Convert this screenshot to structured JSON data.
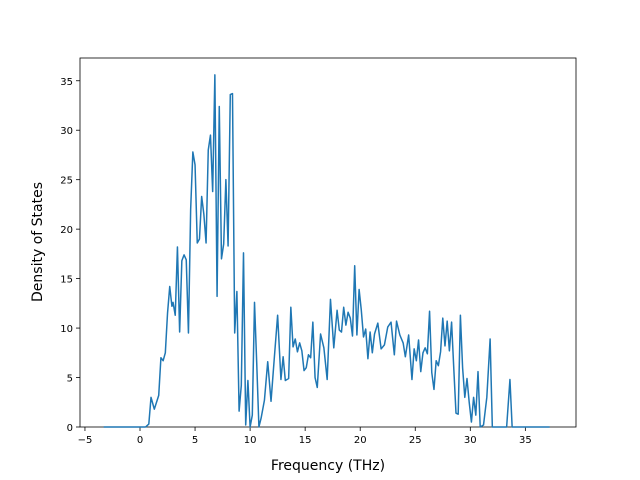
{
  "chart_data": {
    "type": "line",
    "x_label": "Frequency (THz)",
    "y_label": "Density of States",
    "xlim": [
      -5.45,
      39.6
    ],
    "ylim": [
      0,
      37.3
    ],
    "xticks": [
      {
        "value": -5,
        "label": "−5"
      },
      0,
      5,
      10,
      15,
      20,
      25,
      30,
      35
    ],
    "yticks": [
      0,
      5,
      10,
      15,
      20,
      25,
      30,
      35
    ],
    "series": [
      {
        "color": "#1f77b4",
        "x": [
          -3.3,
          0.5,
          0.8,
          1.0,
          1.3,
          1.7,
          1.9,
          2.1,
          2.3,
          2.5,
          2.7,
          2.9,
          3.0,
          3.2,
          3.4,
          3.6,
          3.8,
          4.0,
          4.2,
          4.4,
          4.6,
          4.8,
          5.0,
          5.2,
          5.4,
          5.6,
          5.8,
          6.0,
          6.2,
          6.4,
          6.6,
          6.8,
          7.0,
          7.2,
          7.4,
          7.6,
          7.8,
          8.0,
          8.2,
          8.4,
          8.6,
          8.8,
          9.0,
          9.2,
          9.4,
          9.6,
          9.8,
          10.0,
          10.2,
          10.4,
          10.6,
          10.8,
          11.0,
          11.3,
          11.6,
          11.9,
          12.2,
          12.5,
          12.8,
          13.0,
          13.2,
          13.5,
          13.7,
          13.9,
          14.1,
          14.3,
          14.5,
          14.7,
          14.9,
          15.1,
          15.3,
          15.5,
          15.7,
          15.9,
          16.1,
          16.4,
          16.7,
          17.0,
          17.3,
          17.6,
          17.9,
          18.1,
          18.3,
          18.5,
          18.7,
          18.9,
          19.1,
          19.3,
          19.5,
          19.7,
          19.9,
          20.1,
          20.3,
          20.5,
          20.7,
          20.9,
          21.1,
          21.3,
          21.6,
          21.9,
          22.2,
          22.5,
          22.8,
          23.1,
          23.3,
          23.6,
          23.9,
          24.1,
          24.4,
          24.7,
          24.9,
          25.1,
          25.3,
          25.5,
          25.7,
          25.9,
          26.1,
          26.3,
          26.5,
          26.7,
          26.9,
          27.1,
          27.3,
          27.5,
          27.7,
          27.9,
          28.1,
          28.3,
          28.5,
          28.7,
          28.9,
          29.1,
          29.3,
          29.5,
          29.7,
          29.9,
          30.1,
          30.3,
          30.5,
          30.7,
          30.9,
          31.2,
          31.5,
          31.8,
          32.0,
          33.3,
          33.6,
          33.8,
          37.2
        ],
        "values": [
          0,
          0,
          0.3,
          3.0,
          1.8,
          3.2,
          7.0,
          6.7,
          7.5,
          11.5,
          14.2,
          12.2,
          12.6,
          11.3,
          18.2,
          9.6,
          16.8,
          17.4,
          16.9,
          9.5,
          22.0,
          27.8,
          26.5,
          18.6,
          19.0,
          23.3,
          21.5,
          18.6,
          28.0,
          29.5,
          23.8,
          35.6,
          13.2,
          32.4,
          17.0,
          18.5,
          25.0,
          18.3,
          33.6,
          33.7,
          9.5,
          13.7,
          1.6,
          4.2,
          17.6,
          0.2,
          4.7,
          0,
          1.2,
          12.6,
          6.5,
          0,
          0.9,
          2.7,
          6.6,
          2.6,
          7.0,
          11.3,
          4.8,
          7.1,
          4.7,
          4.9,
          12.1,
          8.1,
          8.9,
          7.6,
          8.5,
          7.7,
          5.7,
          6.0,
          7.3,
          7.0,
          10.6,
          5.0,
          4.0,
          9.4,
          8.0,
          4.8,
          12.9,
          8.0,
          11.8,
          9.8,
          9.6,
          12.1,
          10.3,
          11.6,
          11.0,
          9.2,
          16.3,
          9.3,
          13.9,
          11.8,
          9.1,
          9.9,
          6.9,
          9.6,
          7.5,
          9.4,
          10.5,
          7.9,
          8.3,
          10.1,
          10.6,
          7.3,
          10.7,
          9.3,
          8.5,
          7.1,
          9.3,
          4.8,
          7.9,
          6.7,
          8.8,
          5.6,
          7.5,
          8.0,
          7.4,
          11.7,
          5.5,
          3.8,
          6.7,
          6.2,
          7.6,
          11.0,
          8.2,
          10.7,
          7.7,
          10.6,
          5.9,
          1.4,
          1.3,
          11.3,
          6.0,
          3.0,
          4.9,
          2.5,
          0.5,
          3.0,
          1.2,
          5.6,
          0,
          0.2,
          3.0,
          8.9,
          0,
          0,
          4.8,
          0,
          0
        ]
      }
    ]
  }
}
